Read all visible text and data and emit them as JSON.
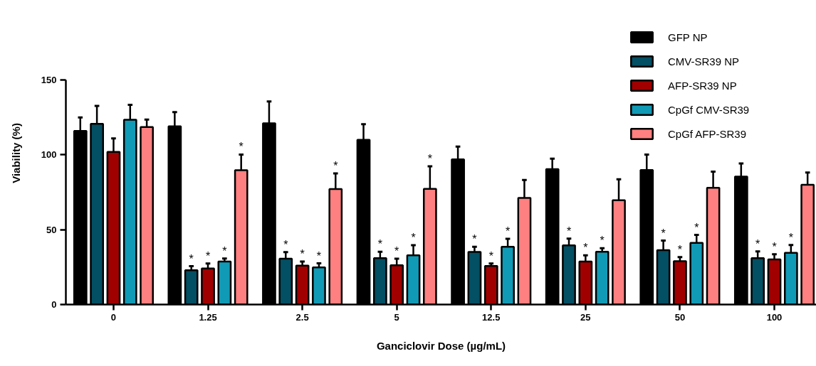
{
  "chart_data": {
    "type": "bar",
    "xlabel": "Ganciclovir Dose (µg/mL)",
    "ylabel": "Viability (%)",
    "categories": [
      "0",
      "1.25",
      "2.5",
      "5",
      "12.5",
      "25",
      "50",
      "100"
    ],
    "ylim": [
      0,
      150
    ],
    "yticks": [
      0,
      50,
      100,
      150
    ],
    "grid": false,
    "legend": "top right",
    "series": [
      {
        "name": "GFP NP",
        "color": "#000000",
        "values": [
          116,
          119,
          121,
          110,
          97,
          90.4,
          89.8,
          85.4
        ],
        "errors": [
          9,
          9.5,
          14.6,
          10.5,
          8.5,
          7,
          10.3,
          8.8
        ]
      },
      {
        "name": "CMV-SR39 NP",
        "color": "#034f63",
        "values": [
          120.7,
          22.9,
          30.6,
          31,
          35.1,
          39.5,
          36.3,
          31
        ],
        "errors": [
          12,
          2.7,
          4.4,
          4.2,
          3.5,
          4.5,
          6.4,
          4.5
        ],
        "value_labels": [
          null,
          "*",
          "*",
          "*",
          "*",
          "*",
          "*",
          "*"
        ]
      },
      {
        "name": "AFP-SR39 NP",
        "color": "#a00000",
        "values": [
          101.9,
          24.1,
          26,
          26.2,
          25.7,
          28.7,
          29,
          30.2
        ],
        "errors": [
          9,
          3.3,
          2.7,
          4.4,
          1.7,
          4.2,
          2.7,
          3.4
        ],
        "value_labels": [
          null,
          "*",
          "*",
          "*",
          "*",
          "*",
          "*",
          "*"
        ]
      },
      {
        "name": "CpGf CMV-SR39",
        "color": "#119ab5",
        "values": [
          123.4,
          28.7,
          24.8,
          32.9,
          38.6,
          35.2,
          41.2,
          34.5
        ],
        "errors": [
          10,
          2,
          2.7,
          6.7,
          5.3,
          2.4,
          5.3,
          5.2
        ],
        "value_labels": [
          null,
          "*",
          "*",
          "*",
          "*",
          "*",
          "*",
          "*"
        ]
      },
      {
        "name": "CpGf AFP-SR39",
        "color": "#ff8080",
        "values": [
          118.5,
          89.7,
          77.1,
          77.3,
          71.2,
          69.7,
          78,
          80
        ],
        "errors": [
          5,
          10.5,
          10.5,
          15,
          12,
          14,
          10.8,
          8.2
        ],
        "value_labels": [
          null,
          "*",
          "*",
          "*",
          null,
          null,
          null,
          null
        ]
      }
    ]
  }
}
